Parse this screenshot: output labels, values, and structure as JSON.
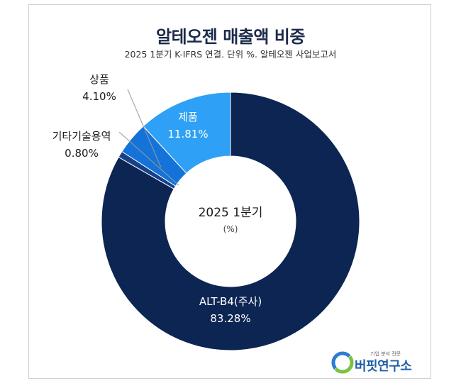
{
  "header": {
    "title": "알테오젠 매출액 비중",
    "subtitle": "2025 1분기 K-IFRS 연결. 단위 %. 알테오젠 사업보고서"
  },
  "center": {
    "period": "2025 1분기",
    "unit": "(%)"
  },
  "brand": {
    "tagline": "기업 분석 전문",
    "name": "버핏연구소",
    "logo_colors": [
      "#2e7bd6",
      "#7cc242"
    ]
  },
  "chart_data": {
    "type": "pie",
    "donut": true,
    "title": "알테오젠 매출액 비중",
    "subtitle": "2025 1분기 K-IFRS 연결. 단위 %. 알테오젠 사업보고서",
    "start": "12 o'clock",
    "direction": "clockwise",
    "labels": [
      "ALT-B4(주사)",
      "기타기술용역",
      "상품",
      "제품"
    ],
    "values": [
      83.28,
      0.8,
      4.1,
      11.81
    ],
    "display": [
      "83.28%",
      "0.80%",
      "4.10%",
      "11.81%"
    ],
    "colors": [
      "#0c2553",
      "#14418a",
      "#1473d8",
      "#2ea0f5"
    ]
  }
}
